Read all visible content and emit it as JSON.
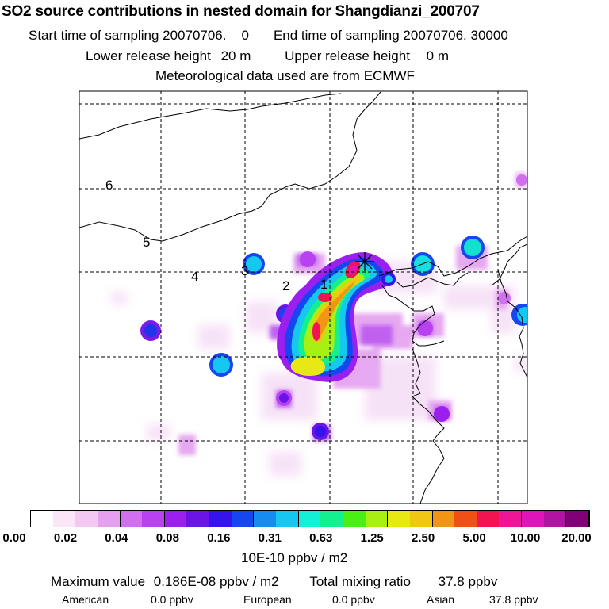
{
  "header": {
    "title": "SO2 source contributions in nested domain for Shangdianzi_200707",
    "start_label": "Start time of sampling 20070706.",
    "start_val": "0",
    "end_label": "End time of sampling 20070706. 30000",
    "lower_label": "Lower release height",
    "lower_val": "20 m",
    "upper_label": "Upper release height",
    "upper_val": "0 m",
    "met": "Meteorological data used are from ECMWF"
  },
  "map": {
    "region_labels": [
      "1",
      "2",
      "3",
      "4",
      "5",
      "6"
    ],
    "receptor_marker": "star-cross"
  },
  "colorbar": {
    "colors": [
      "#ffffff",
      "#fbe6f8",
      "#f3c8f3",
      "#e7a0f0",
      "#d070f0",
      "#b842f0",
      "#9b20f0",
      "#6a14e8",
      "#3414e8",
      "#1646f0",
      "#148cf0",
      "#14c8f0",
      "#14f0d8",
      "#14f090",
      "#48f014",
      "#a8f014",
      "#e8e814",
      "#f0c814",
      "#f09614",
      "#f05014",
      "#f01450",
      "#f01496",
      "#e014b8",
      "#b014a0",
      "#800078"
    ],
    "tick_labels": [
      "0.00",
      "0.02",
      "0.04",
      "0.08",
      "0.16",
      "0.31",
      "0.63",
      "1.25",
      "2.50",
      "5.00",
      "10.00",
      "20.00"
    ],
    "unit": "10E-10 ppbv / m2"
  },
  "footer": {
    "max_label": "Maximum value",
    "max_value": "0.186E-08 ppbv / m2",
    "total_label": "Total mixing ratio",
    "total_value": "37.8 ppbv",
    "sources": [
      {
        "name": "American",
        "value": "0.0 ppbv"
      },
      {
        "name": "European",
        "value": "0.0 ppbv"
      },
      {
        "name": "Asian",
        "value": "37.8 ppbv"
      }
    ]
  }
}
